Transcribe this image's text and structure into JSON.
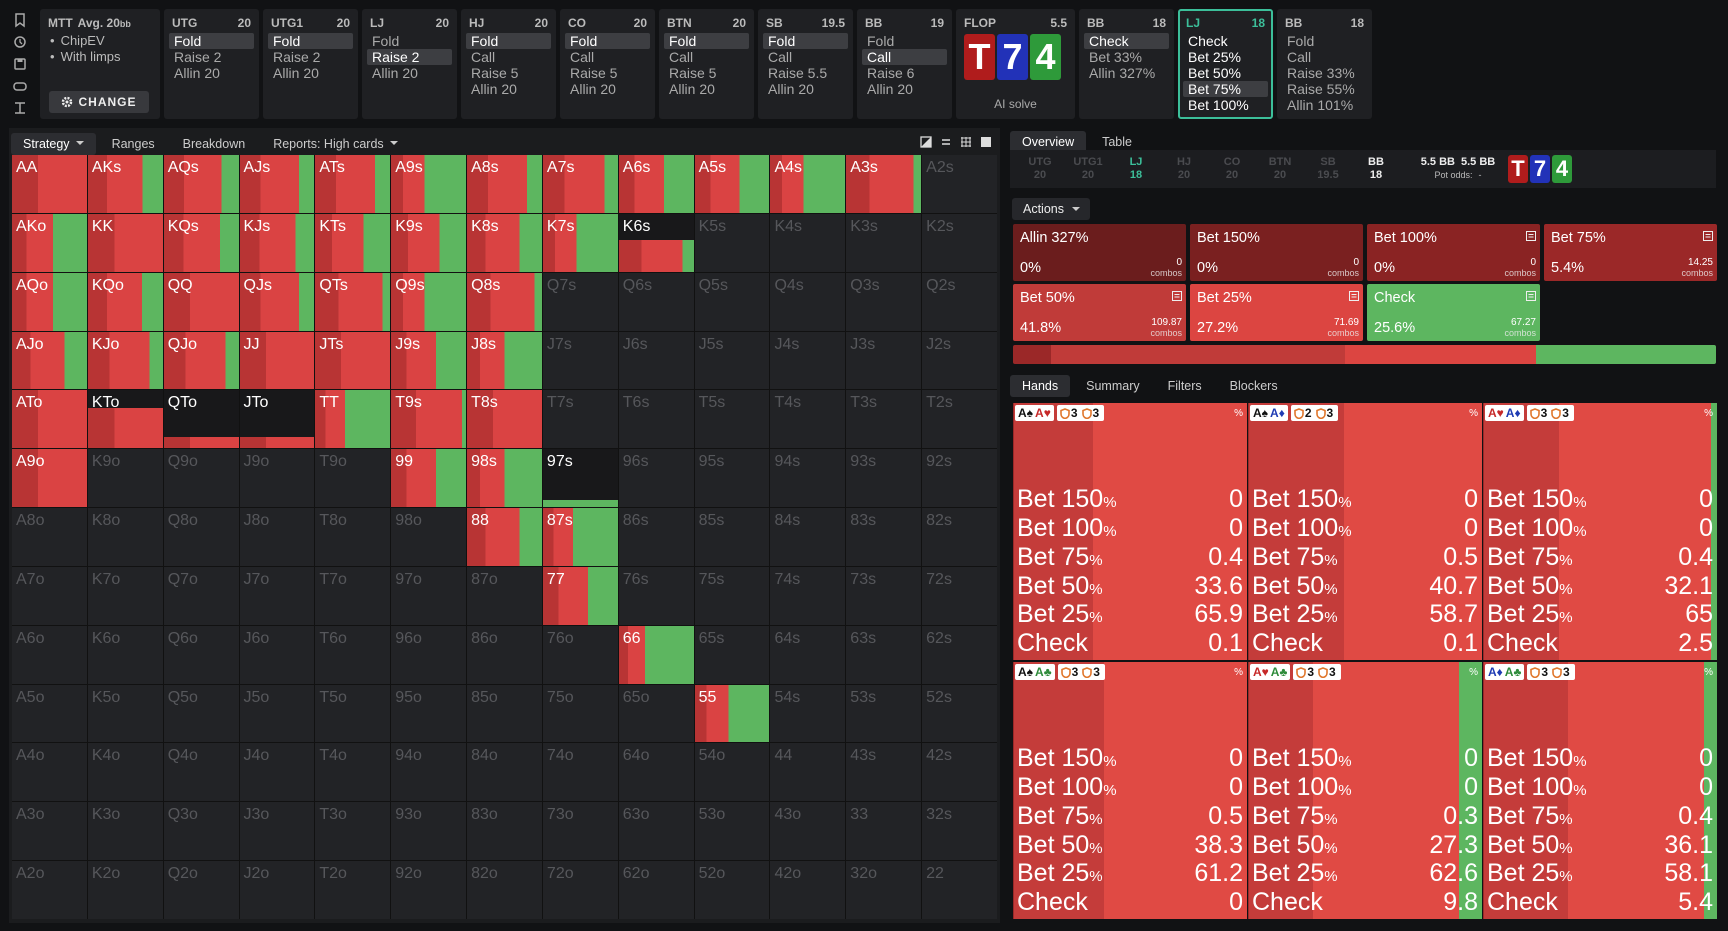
{
  "header": {
    "info": {
      "format": "MTT",
      "avg": "Avg. 20",
      "avg_unit": "bb",
      "bullets": [
        "ChipEV",
        "With limps"
      ],
      "button": "CHANGE"
    },
    "preflop": [
      {
        "pos": "UTG",
        "stack": "20",
        "actions": [
          "Fold",
          "Raise 2",
          "Allin 20"
        ],
        "selected": 0
      },
      {
        "pos": "UTG1",
        "stack": "20",
        "actions": [
          "Fold",
          "Raise 2",
          "Allin 20"
        ],
        "selected": 0
      },
      {
        "pos": "LJ",
        "stack": "20",
        "actions": [
          "Fold",
          "Raise 2",
          "Allin 20"
        ],
        "selected": 1
      },
      {
        "pos": "HJ",
        "stack": "20",
        "actions": [
          "Fold",
          "Call",
          "Raise 5",
          "Allin 20"
        ],
        "selected": 0
      },
      {
        "pos": "CO",
        "stack": "20",
        "actions": [
          "Fold",
          "Call",
          "Raise 5",
          "Allin 20"
        ],
        "selected": 0
      },
      {
        "pos": "BTN",
        "stack": "20",
        "actions": [
          "Fold",
          "Call",
          "Raise 5",
          "Allin 20"
        ],
        "selected": 0
      },
      {
        "pos": "SB",
        "stack": "19.5",
        "actions": [
          "Fold",
          "Call",
          "Raise 5.5",
          "Allin 20"
        ],
        "selected": 0
      },
      {
        "pos": "BB",
        "stack": "19",
        "actions": [
          "Fold",
          "Call",
          "Raise 6",
          "Allin 20"
        ],
        "selected": 1
      }
    ],
    "flop": {
      "label": "FLOP",
      "pot": "5.5",
      "board": [
        {
          "rank": "T",
          "color": "#b01c1c"
        },
        {
          "rank": "7",
          "color": "#2232b8"
        },
        {
          "rank": "4",
          "color": "#2e9a3a"
        }
      ],
      "button": "AI solve"
    },
    "postflop": [
      {
        "pos": "BB",
        "stack": "18",
        "actions": [
          "Check",
          "Bet 33%",
          "Allin 327%"
        ],
        "selected": 0
      },
      {
        "pos": "LJ",
        "stack": "18",
        "actions": [
          "Check",
          "Bet 25%",
          "Bet 50%",
          "Bet 75%",
          "Bet 100%"
        ],
        "selected": 3,
        "active": true
      },
      {
        "pos": "BB",
        "stack": "18",
        "actions": [
          "Fold",
          "Call",
          "Raise 33%",
          "Raise 55%",
          "Allin 101%"
        ]
      }
    ]
  },
  "left_tabs": {
    "items": [
      "Strategy",
      "Ranges",
      "Breakdown",
      "Reports: High cards"
    ],
    "selected": 0
  },
  "grid": {
    "rows": [
      [
        "AA",
        "AKs",
        "AQs",
        "AJs",
        "ATs",
        "A9s",
        "A8s",
        "A7s",
        "A6s",
        "A5s",
        "A4s",
        "A3s",
        "A2s"
      ],
      [
        "AKo",
        "KK",
        "KQs",
        "KJs",
        "KTs",
        "K9s",
        "K8s",
        "K7s",
        "K6s",
        "K5s",
        "K4s",
        "K3s",
        "K2s"
      ],
      [
        "AQo",
        "KQo",
        "QQ",
        "QJs",
        "QTs",
        "Q9s",
        "Q8s",
        "Q7s",
        "Q6s",
        "Q5s",
        "Q4s",
        "Q3s",
        "Q2s"
      ],
      [
        "AJo",
        "KJo",
        "QJo",
        "JJ",
        "JTs",
        "J9s",
        "J8s",
        "J7s",
        "J6s",
        "J5s",
        "J4s",
        "J3s",
        "J2s"
      ],
      [
        "ATo",
        "KTo",
        "QTo",
        "JTo",
        "TT",
        "T9s",
        "T8s",
        "T7s",
        "T6s",
        "T5s",
        "T4s",
        "T3s",
        "T2s"
      ],
      [
        "A9o",
        "K9o",
        "Q9o",
        "J9o",
        "T9o",
        "99",
        "98s",
        "97s",
        "96s",
        "95s",
        "94s",
        "93s",
        "92s"
      ],
      [
        "A8o",
        "K8o",
        "Q8o",
        "J8o",
        "T8o",
        "98o",
        "88",
        "87s",
        "86s",
        "85s",
        "84s",
        "83s",
        "82s"
      ],
      [
        "A7o",
        "K7o",
        "Q7o",
        "J7o",
        "T7o",
        "97o",
        "87o",
        "77",
        "76s",
        "75s",
        "74s",
        "73s",
        "72s"
      ],
      [
        "A6o",
        "K6o",
        "Q6o",
        "J6o",
        "T6o",
        "96o",
        "86o",
        "76o",
        "66",
        "65s",
        "64s",
        "63s",
        "62s"
      ],
      [
        "A5o",
        "K5o",
        "Q5o",
        "J5o",
        "T5o",
        "95o",
        "85o",
        "75o",
        "65o",
        "55",
        "54s",
        "53s",
        "52s"
      ],
      [
        "A4o",
        "K4o",
        "Q4o",
        "J4o",
        "T4o",
        "94o",
        "84o",
        "74o",
        "64o",
        "54o",
        "44",
        "43s",
        "42s"
      ],
      [
        "A3o",
        "K3o",
        "Q3o",
        "J3o",
        "T3o",
        "93o",
        "83o",
        "73o",
        "63o",
        "53o",
        "43o",
        "33",
        "32s"
      ],
      [
        "A2o",
        "K2o",
        "Q2o",
        "J2o",
        "T2o",
        "92o",
        "82o",
        "72o",
        "62o",
        "52o",
        "42o",
        "32o",
        "22"
      ]
    ],
    "strategy": {
      "AA": {
        "check": 0
      },
      "AKs": {
        "check": 27
      },
      "AQs": {
        "check": 23
      },
      "AJs": {
        "check": 20
      },
      "ATs": {
        "check": 20
      },
      "A9s": {
        "check": 55
      },
      "A8s": {
        "check": 20
      },
      "A7s": {
        "check": 18
      },
      "A6s": {
        "check": 40
      },
      "A5s": {
        "check": 40
      },
      "A4s": {
        "check": 55
      },
      "A3s": {
        "check": 10
      },
      "AKo": {
        "check": 45
      },
      "KK": {
        "check": 0
      },
      "KQs": {
        "check": 25
      },
      "KJs": {
        "check": 25
      },
      "KTs": {
        "check": 35
      },
      "K9s": {
        "check": 35
      },
      "K8s": {
        "check": 30
      },
      "K7s": {
        "check": 55
      },
      "K6s": {
        "check": 15,
        "weight": 55
      },
      "AQo": {
        "check": 45
      },
      "KQo": {
        "check": 28
      },
      "QQ": {
        "check": 0
      },
      "QJs": {
        "check": 20
      },
      "QTs": {
        "check": 10
      },
      "Q9s": {
        "check": 55
      },
      "Q8s": {
        "check": 10
      },
      "AJo": {
        "check": 30
      },
      "KJo": {
        "check": 18
      },
      "QJo": {
        "check": 18
      },
      "JJ": {
        "check": 0
      },
      "JTs": {
        "check": 0
      },
      "J9s": {
        "check": 40
      },
      "J8s": {
        "check": 50
      },
      "ATo": {
        "check": 0
      },
      "KTo": {
        "check": 0,
        "weight": 70
      },
      "QTo": {
        "check": 0,
        "weight": 20
      },
      "JTo": {
        "check": 0,
        "weight": 20
      },
      "TT": {
        "check": 60
      },
      "T9s": {
        "check": 5
      },
      "T8s": {
        "check": 0
      },
      "A9o": {
        "check": 0
      },
      "99": {
        "check": 40
      },
      "98s": {
        "check": 50
      },
      "97s": {
        "check": 100,
        "weight": 12
      },
      "88": {
        "check": 30
      },
      "87s": {
        "check": 60
      },
      "77": {
        "check": 40
      },
      "66": {
        "check": 65
      },
      "55": {
        "check": 55
      }
    }
  },
  "right_tabs": {
    "items": [
      "Overview",
      "Table"
    ],
    "selected": 0
  },
  "positions": [
    {
      "pos": "UTG",
      "stack": "20",
      "state": "dim"
    },
    {
      "pos": "UTG1",
      "stack": "20",
      "state": "dim"
    },
    {
      "pos": "LJ",
      "stack": "18",
      "state": "teal"
    },
    {
      "pos": "HJ",
      "stack": "20",
      "state": "dim"
    },
    {
      "pos": "CO",
      "stack": "20",
      "state": "dim"
    },
    {
      "pos": "BTN",
      "stack": "20",
      "state": "dim"
    },
    {
      "pos": "SB",
      "stack": "19.5",
      "state": "dim"
    },
    {
      "pos": "BB",
      "stack": "18",
      "state": "bright"
    }
  ],
  "pot": {
    "values": [
      "5.5 BB",
      "5.5 BB"
    ],
    "odds_label": "Pot odds:",
    "odds": "-"
  },
  "actions": {
    "button": "Actions",
    "combos_label": "combos",
    "items": [
      {
        "name": "Allin 327%",
        "freq": 0,
        "freq_label": "0%",
        "combos": 0,
        "color": "#6b1d1d"
      },
      {
        "name": "Bet 150%",
        "freq": 0,
        "freq_label": "0%",
        "combos": 0,
        "color": "#7a2020"
      },
      {
        "name": "Bet 100%",
        "freq": 0,
        "freq_label": "0%",
        "combos": 0,
        "color": "#8a2323",
        "icon": true
      },
      {
        "name": "Bet 75%",
        "freq": 5.4,
        "freq_label": "5.4%",
        "combos": 14.25,
        "color": "#9b2828",
        "icon": true
      },
      {
        "name": "Bet 50%",
        "freq": 41.8,
        "freq_label": "41.8%",
        "combos": 109.87,
        "color": "#c03b39",
        "icon": true
      },
      {
        "name": "Bet 25%",
        "freq": 27.2,
        "freq_label": "27.2%",
        "combos": 71.69,
        "color": "#dc4541",
        "icon": true
      },
      {
        "name": "Check",
        "freq": 25.6,
        "freq_label": "25.6%",
        "combos": 67.27,
        "color": "#5db660",
        "icon": true
      }
    ]
  },
  "hand_tabs": {
    "items": [
      "Hands",
      "Summary",
      "Filters",
      "Blockers"
    ],
    "selected": 0
  },
  "hands": {
    "pct_label": "%",
    "rows": [
      {
        "name": "Bet 150",
        "unit": "%",
        "color": "#7a2020"
      },
      {
        "name": "Bet 100",
        "unit": "%",
        "color": "#8a2323"
      },
      {
        "name": "Bet 75",
        "unit": "%",
        "color": "#9b2828"
      },
      {
        "name": "Bet 50",
        "unit": "%",
        "color": "#c43c3a"
      },
      {
        "name": "Bet 25",
        "unit": "%",
        "color": "#e04a44"
      },
      {
        "name": "Check",
        "unit": "",
        "color": "#5db660"
      }
    ],
    "tiles": [
      {
        "cards": [
          {
            "text": "A♠",
            "color": "#111111"
          },
          {
            "text": "A♥",
            "color": "#c62828"
          }
        ],
        "chips": [
          "3",
          "3"
        ],
        "values": [
          0,
          0,
          0.4,
          33.6,
          65.9,
          0.1
        ]
      },
      {
        "cards": [
          {
            "text": "A♠",
            "color": "#111111"
          },
          {
            "text": "A♦",
            "color": "#1f3bb3"
          }
        ],
        "chips": [
          "2",
          "3"
        ],
        "values": [
          0,
          0,
          0.5,
          40.7,
          58.7,
          0.1
        ]
      },
      {
        "cards": [
          {
            "text": "A♥",
            "color": "#c62828"
          },
          {
            "text": "A♦",
            "color": "#1f3bb3"
          }
        ],
        "chips": [
          "3",
          "3"
        ],
        "values": [
          0,
          0,
          0.4,
          32.1,
          65,
          2.5
        ]
      },
      {
        "cards": [
          {
            "text": "A♠",
            "color": "#111111"
          },
          {
            "text": "A♣",
            "color": "#2e8b3a"
          }
        ],
        "chips": [
          "3",
          "3"
        ],
        "values": [
          0,
          0,
          0.5,
          38.3,
          61.2,
          0
        ]
      },
      {
        "cards": [
          {
            "text": "A♥",
            "color": "#c62828"
          },
          {
            "text": "A♣",
            "color": "#2e8b3a"
          }
        ],
        "chips": [
          "3",
          "3"
        ],
        "values": [
          0,
          0,
          0.3,
          27.3,
          62.6,
          9.8
        ]
      },
      {
        "cards": [
          {
            "text": "A♦",
            "color": "#1f3bb3"
          },
          {
            "text": "A♣",
            "color": "#2e8b3a"
          }
        ],
        "chips": [
          "3",
          "3"
        ],
        "values": [
          0,
          0,
          0.4,
          36.1,
          58.1,
          5.4
        ]
      }
    ]
  }
}
